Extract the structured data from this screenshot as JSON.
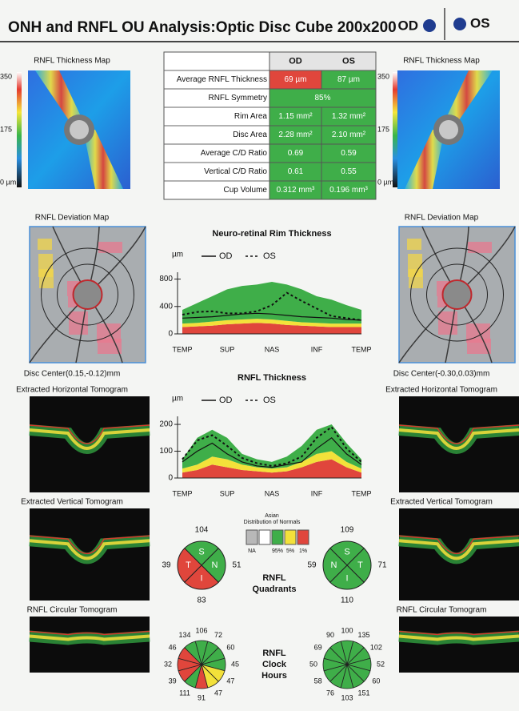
{
  "header": {
    "title": "ONH and RNFL OU Analysis:Optic Disc Cube 200x200",
    "od": "OD",
    "os": "OS"
  },
  "od_panel": {
    "thickness_map": {
      "title": "RNFL Thickness Map",
      "scale": [
        "350",
        "175",
        "0 µm"
      ]
    },
    "deviation_map": {
      "title": "RNFL Deviation Map",
      "disc_center": "Disc Center(0.15,-0.12)mm"
    },
    "horizontal_tomogram": "Extracted Horizontal Tomogram",
    "vertical_tomogram": "Extracted Vertical Tomogram",
    "circular_tomogram": "RNFL Circular Tomogram"
  },
  "os_panel": {
    "thickness_map": {
      "title": "RNFL Thickness Map",
      "scale": [
        "350",
        "175",
        "0 µm"
      ]
    },
    "deviation_map": {
      "title": "RNFL Deviation Map",
      "disc_center": "Disc Center(-0.30,0.03)mm"
    },
    "horizontal_tomogram": "Extracted Horizontal Tomogram",
    "vertical_tomogram": "Extracted Vertical Tomogram",
    "circular_tomogram": "RNFL Circular Tomogram"
  },
  "table": {
    "columns": [
      "OD",
      "OS"
    ],
    "rows": [
      {
        "label": "Average RNFL Thickness",
        "cells": [
          {
            "text": "69 µm",
            "color": "#e0463c"
          },
          {
            "text": "87 µm",
            "color": "#3fae49"
          }
        ]
      },
      {
        "label": "RNFL Symmetry",
        "cells": [
          {
            "text": "85%",
            "color": "#3fae49"
          }
        ]
      },
      {
        "label": "Rim Area",
        "cells": [
          {
            "text": "1.15 mm²",
            "color": "#3fae49"
          },
          {
            "text": "1.32 mm²",
            "color": "#3fae49"
          }
        ]
      },
      {
        "label": "Disc Area",
        "cells": [
          {
            "text": "2.28 mm²",
            "color": "#3fae49"
          },
          {
            "text": "2.10 mm²",
            "color": "#3fae49"
          }
        ]
      },
      {
        "label": "Average C/D Ratio",
        "cells": [
          {
            "text": "0.69",
            "color": "#3fae49"
          },
          {
            "text": "0.59",
            "color": "#3fae49"
          }
        ]
      },
      {
        "label": "Vertical C/D Ratio",
        "cells": [
          {
            "text": "0.61",
            "color": "#3fae49"
          },
          {
            "text": "0.55",
            "color": "#3fae49"
          }
        ]
      },
      {
        "label": "Cup Volume",
        "cells": [
          {
            "text": "0.312 mm³",
            "color": "#3fae49"
          },
          {
            "text": "0.196 mm³",
            "color": "#3fae49"
          }
        ]
      }
    ]
  },
  "rim_chart": {
    "title": "Neuro-retinal Rim Thickness",
    "unit": "µm",
    "categories": [
      "TEMP",
      null,
      null,
      "SUP",
      null,
      null,
      "NAS",
      null,
      null,
      "INF",
      null,
      null,
      "TEMP"
    ],
    "ylim": [
      0,
      900
    ],
    "yticks": [
      0,
      400,
      800
    ],
    "bands": [
      {
        "color": "#e0463c",
        "values": [
          100,
          110,
          120,
          140,
          150,
          160,
          150,
          130,
          120,
          110,
          100,
          100,
          100
        ]
      },
      {
        "color": "#f3e13a",
        "values": [
          150,
          160,
          180,
          200,
          210,
          220,
          210,
          190,
          170,
          160,
          150,
          150,
          150
        ]
      },
      {
        "color": "#3fae49",
        "values": [
          350,
          450,
          550,
          650,
          700,
          720,
          760,
          720,
          650,
          550,
          500,
          420,
          350
        ]
      }
    ],
    "series": [
      {
        "name": "OD",
        "color": "#111111",
        "dashed": false,
        "values": [
          230,
          240,
          250,
          270,
          290,
          300,
          290,
          270,
          250,
          240,
          230,
          210,
          200
        ]
      },
      {
        "name": "OS",
        "color": "#111111",
        "dashed": true,
        "values": [
          280,
          320,
          330,
          300,
          300,
          330,
          420,
          600,
          480,
          370,
          260,
          230,
          200
        ]
      }
    ]
  },
  "rnfl_chart": {
    "title": "RNFL Thickness",
    "unit": "µm",
    "categories": [
      "TEMP",
      null,
      null,
      "SUP",
      null,
      null,
      "NAS",
      null,
      null,
      "INF",
      null,
      null,
      "TEMP"
    ],
    "ylim": [
      0,
      230
    ],
    "yticks": [
      0,
      100,
      200
    ],
    "bands": [
      {
        "color": "#e0463c",
        "values": [
          20,
          30,
          50,
          40,
          30,
          25,
          20,
          25,
          40,
          60,
          70,
          40,
          20
        ]
      },
      {
        "color": "#f3e13a",
        "values": [
          35,
          50,
          80,
          70,
          50,
          40,
          35,
          40,
          60,
          90,
          100,
          60,
          35
        ]
      },
      {
        "color": "#3fae49",
        "values": [
          70,
          150,
          180,
          150,
          90,
          70,
          60,
          80,
          120,
          180,
          200,
          130,
          70
        ]
      }
    ],
    "series": [
      {
        "name": "OD",
        "color": "#111111",
        "dashed": false,
        "values": [
          60,
          100,
          130,
          90,
          60,
          45,
          40,
          50,
          60,
          110,
          150,
          90,
          50
        ]
      },
      {
        "name": "OS",
        "color": "#111111",
        "dashed": true,
        "values": [
          70,
          140,
          160,
          120,
          75,
          55,
          45,
          55,
          80,
          150,
          190,
          110,
          60
        ]
      }
    ]
  },
  "normals_legend": {
    "title": [
      "Asian",
      "Distribution of Normals"
    ],
    "items": [
      {
        "label": "NA",
        "color": "#b8b8b8"
      },
      {
        "color": "#ffffff"
      },
      {
        "label": "95%",
        "color": "#3fae49"
      },
      {
        "label": "5%",
        "color": "#f3e13a"
      },
      {
        "label": "1%",
        "color": "#e0463c"
      }
    ]
  },
  "quadrants": {
    "label": [
      "RNFL",
      "Quadrants"
    ],
    "od": [
      {
        "label": "S",
        "value": 104,
        "color": "#3fae49"
      },
      {
        "label": "N",
        "value": 51,
        "color": "#3fae49"
      },
      {
        "label": "I",
        "value": 83,
        "color": "#e0463c"
      },
      {
        "label": "T",
        "value": 39,
        "color": "#e0463c"
      }
    ],
    "os": [
      {
        "label": "S",
        "value": 109,
        "color": "#3fae49"
      },
      {
        "label": "T",
        "value": 71,
        "color": "#3fae49"
      },
      {
        "label": "I",
        "value": 110,
        "color": "#3fae49"
      },
      {
        "label": "N",
        "value": 59,
        "color": "#3fae49"
      }
    ]
  },
  "clock_hours": {
    "label": [
      "RNFL",
      "Clock",
      "Hours"
    ],
    "od": [
      {
        "value": 106,
        "color": "#3fae49"
      },
      {
        "value": 72,
        "color": "#3fae49"
      },
      {
        "value": 60,
        "color": "#3fae49"
      },
      {
        "value": 45,
        "color": "#3fae49"
      },
      {
        "value": 47,
        "color": "#f3e13a"
      },
      {
        "value": 47,
        "color": "#f3e13a"
      },
      {
        "value": 91,
        "color": "#e0463c"
      },
      {
        "value": 111,
        "color": "#3fae49"
      },
      {
        "value": 39,
        "color": "#e0463c"
      },
      {
        "value": 32,
        "color": "#e0463c"
      },
      {
        "value": 46,
        "color": "#e0463c"
      },
      {
        "value": 134,
        "color": "#3fae49"
      }
    ],
    "os": [
      {
        "value": 100,
        "color": "#3fae49"
      },
      {
        "value": 135,
        "color": "#3fae49"
      },
      {
        "value": 102,
        "color": "#3fae49"
      },
      {
        "value": 52,
        "color": "#3fae49"
      },
      {
        "value": 60,
        "color": "#3fae49"
      },
      {
        "value": 151,
        "color": "#3fae49"
      },
      {
        "value": 103,
        "color": "#3fae49"
      },
      {
        "value": 76,
        "color": "#3fae49"
      },
      {
        "value": 58,
        "color": "#3fae49"
      },
      {
        "value": 50,
        "color": "#3fae49"
      },
      {
        "value": 69,
        "color": "#3fae49"
      },
      {
        "value": 90,
        "color": "#3fae49"
      }
    ]
  }
}
